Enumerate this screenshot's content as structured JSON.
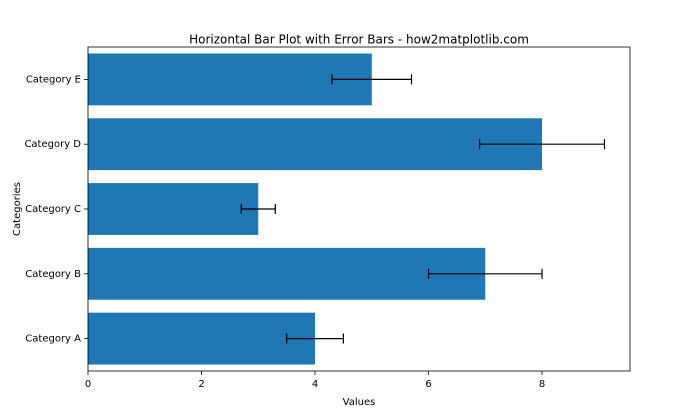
{
  "chart_data": {
    "type": "barh",
    "title": "Horizontal Bar Plot with Error Bars - how2matplotlib.com",
    "xlabel": "Values",
    "ylabel": "Categories",
    "categories": [
      "Category A",
      "Category B",
      "Category C",
      "Category D",
      "Category E"
    ],
    "values": [
      4,
      7,
      3,
      8,
      5
    ],
    "errors": [
      0.5,
      1.0,
      0.3,
      1.1,
      0.7
    ],
    "color": "#1f77b4",
    "error_color": "#000000",
    "xlim": [
      0,
      9.55
    ],
    "xticks": [
      0,
      2,
      4,
      6,
      8
    ]
  }
}
